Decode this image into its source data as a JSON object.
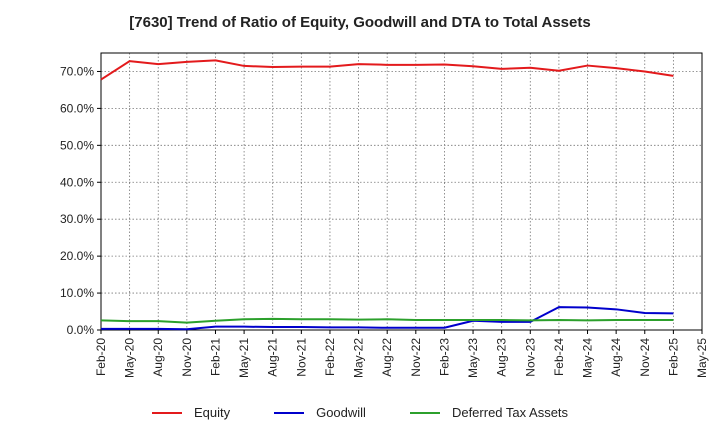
{
  "chart_data": {
    "type": "line",
    "title": "[7630]  Trend of Ratio of Equity, Goodwill and DTA to Total Assets",
    "xlabel": "",
    "ylabel": "",
    "x": [
      "Feb-20",
      "May-20",
      "Aug-20",
      "Nov-20",
      "Feb-21",
      "May-21",
      "Aug-21",
      "Nov-21",
      "Feb-22",
      "May-22",
      "Aug-22",
      "Nov-22",
      "Feb-23",
      "May-23",
      "Aug-23",
      "Nov-23",
      "Feb-24",
      "May-24",
      "Aug-24",
      "Nov-24",
      "Feb-25",
      "May-25"
    ],
    "ylim": [
      0,
      75
    ],
    "yticks": [
      "0.0%",
      "10.0%",
      "20.0%",
      "30.0%",
      "40.0%",
      "50.0%",
      "60.0%",
      "70.0%"
    ],
    "ytick_values": [
      0,
      10,
      20,
      30,
      40,
      50,
      60,
      70
    ],
    "grid": true,
    "legend_position": "bottom",
    "series": [
      {
        "name": "Equity",
        "color": "#e31a1c",
        "values": [
          67.8,
          72.8,
          72.0,
          72.6,
          73.0,
          71.5,
          71.2,
          71.3,
          71.3,
          72.0,
          71.8,
          71.8,
          71.9,
          71.4,
          70.7,
          71.0,
          70.2,
          71.6,
          70.9,
          70.0,
          68.8,
          null
        ]
      },
      {
        "name": "Goodwill",
        "color": "#0000cc",
        "values": [
          0.3,
          0.3,
          0.3,
          0.2,
          0.9,
          0.9,
          0.8,
          0.8,
          0.7,
          0.7,
          0.6,
          0.6,
          0.6,
          2.5,
          2.2,
          2.2,
          6.2,
          6.1,
          5.6,
          4.6,
          4.5,
          null
        ]
      },
      {
        "name": "Deferred Tax Assets",
        "color": "#2ca02c",
        "values": [
          2.6,
          2.4,
          2.4,
          2.0,
          2.5,
          2.9,
          3.0,
          2.9,
          2.9,
          2.8,
          2.9,
          2.7,
          2.7,
          2.7,
          2.7,
          2.6,
          2.7,
          2.6,
          2.7,
          2.7,
          2.7,
          null
        ]
      }
    ]
  }
}
